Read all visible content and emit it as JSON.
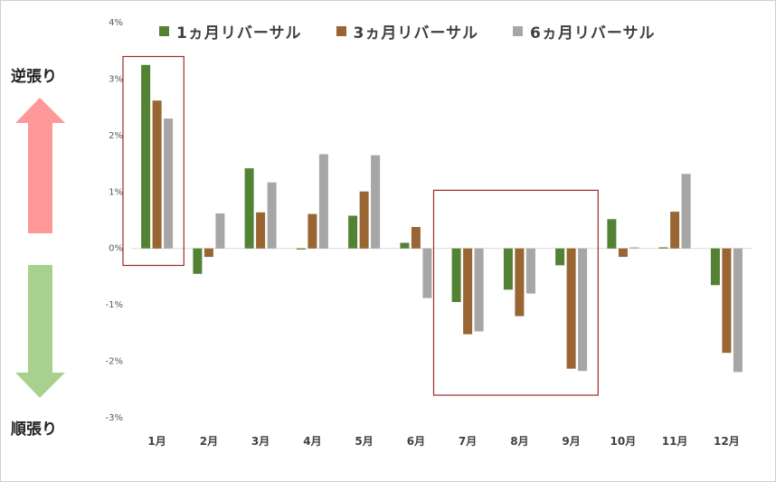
{
  "side_labels": {
    "top": "逆張り",
    "bottom": "順張り"
  },
  "colors": {
    "series": [
      "#548235",
      "#996633",
      "#a6a6a6"
    ],
    "arrow_up": "#ff9999",
    "arrow_down": "#a9d18e",
    "highlight_box": "#9b2c2c",
    "axis": "#d9d9d9",
    "tick_text": "#595959"
  },
  "chart_data": {
    "type": "bar",
    "categories": [
      "1月",
      "2月",
      "3月",
      "4月",
      "5月",
      "6月",
      "7月",
      "8月",
      "9月",
      "10月",
      "11月",
      "12月"
    ],
    "series": [
      {
        "name": "1ヵ月リバーサル",
        "values": [
          3.25,
          -0.45,
          1.42,
          -0.02,
          0.58,
          0.1,
          -0.95,
          -0.73,
          -0.3,
          0.52,
          0.02,
          -0.65
        ]
      },
      {
        "name": "3ヵ月リバーサル",
        "values": [
          2.62,
          -0.15,
          0.64,
          0.61,
          1.01,
          0.38,
          -1.52,
          -1.2,
          -2.13,
          -0.15,
          0.65,
          -1.85
        ]
      },
      {
        "name": "6ヵ月リバーサル",
        "values": [
          2.3,
          0.62,
          1.17,
          1.67,
          1.65,
          -0.88,
          -1.47,
          -0.8,
          -2.17,
          0.02,
          1.32,
          -2.19
        ]
      }
    ],
    "yticks": [
      "4%",
      "3%",
      "2%",
      "1%",
      "0%",
      "-1%",
      "-2%",
      "-3%"
    ],
    "ylim": [
      -3,
      4
    ],
    "grid": false,
    "legend": "top",
    "highlight_groups": [
      {
        "from": "1月",
        "to": "1月"
      },
      {
        "from": "7月",
        "to": "9月"
      }
    ]
  }
}
